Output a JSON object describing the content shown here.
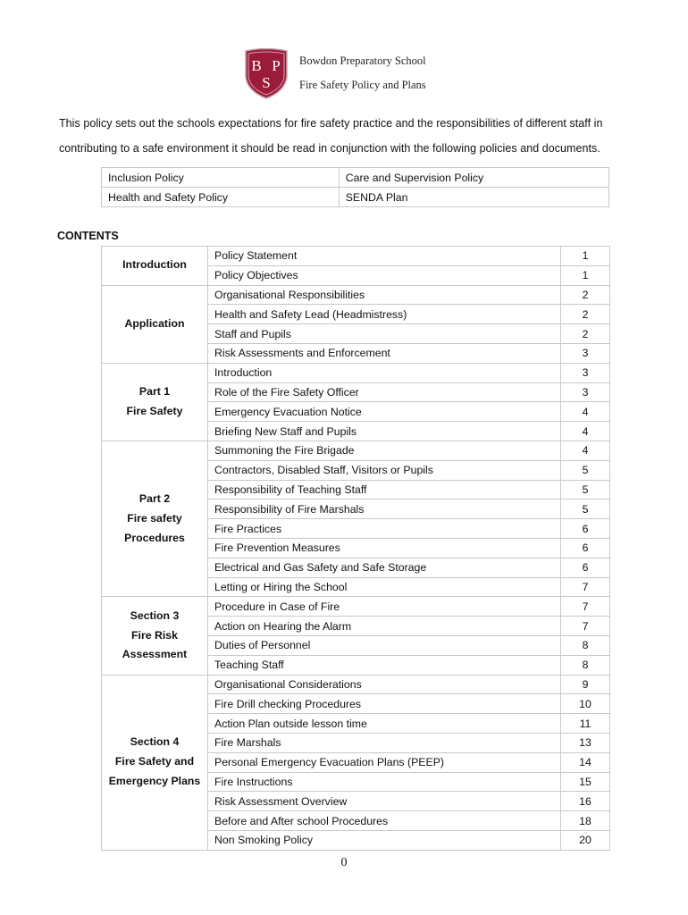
{
  "header": {
    "school": "Bowdon Preparatory School",
    "title": "Fire Safety Policy and Plans",
    "logo_text": "BPS",
    "logo_color": "#9b1c3a"
  },
  "intro": "This policy sets out the schools expectations for fire safety practice and the responsibilities of different staff in contributing to a safe environment it should be read in conjunction with the following policies and documents.",
  "related": [
    [
      "Inclusion Policy",
      "Care and Supervision Policy"
    ],
    [
      "Health and Safety Policy",
      "SENDA Plan"
    ]
  ],
  "contents_heading": "CONTENTS",
  "sections": [
    {
      "lines": [
        "Introduction"
      ],
      "items": [
        [
          "Policy Statement",
          "1"
        ],
        [
          "Policy Objectives",
          "1"
        ]
      ]
    },
    {
      "lines": [
        "Application"
      ],
      "items": [
        [
          "Organisational Responsibilities",
          "2"
        ],
        [
          "Health and Safety Lead (Headmistress)",
          "2"
        ],
        [
          "Staff and Pupils",
          "2"
        ],
        [
          "Risk Assessments and Enforcement",
          "3"
        ]
      ]
    },
    {
      "lines": [
        "Part 1",
        "Fire Safety"
      ],
      "items": [
        [
          "Introduction",
          "3"
        ],
        [
          "Role of the Fire Safety Officer",
          "3"
        ],
        [
          "Emergency Evacuation Notice",
          "4"
        ],
        [
          "Briefing New Staff and Pupils",
          "4"
        ]
      ]
    },
    {
      "lines": [
        "Part 2",
        "Fire safety",
        "Procedures"
      ],
      "items": [
        [
          "Summoning the Fire Brigade",
          "4"
        ],
        [
          "Contractors, Disabled Staff, Visitors or Pupils",
          "5"
        ],
        [
          "Responsibility of Teaching Staff",
          "5"
        ],
        [
          "Responsibility of Fire Marshals",
          "5"
        ],
        [
          "Fire Practices",
          "6"
        ],
        [
          "Fire Prevention Measures",
          "6"
        ],
        [
          "Electrical and Gas Safety and Safe Storage",
          "6"
        ],
        [
          "Letting or Hiring the School",
          "7"
        ]
      ]
    },
    {
      "lines": [
        "Section 3",
        "Fire Risk",
        "Assessment"
      ],
      "items": [
        [
          "Procedure in Case of Fire",
          "7"
        ],
        [
          "Action on Hearing the Alarm",
          "7"
        ],
        [
          "Duties of Personnel",
          "8"
        ],
        [
          "Teaching Staff",
          "8"
        ]
      ]
    },
    {
      "lines": [
        "Section 4",
        "Fire Safety and",
        "Emergency Plans"
      ],
      "items": [
        [
          "Organisational Considerations",
          "9"
        ],
        [
          "Fire Drill checking Procedures",
          "10"
        ],
        [
          "Action Plan outside lesson time",
          "11"
        ],
        [
          "Fire Marshals",
          "13"
        ],
        [
          "Personal Emergency Evacuation Plans (PEEP)",
          "14"
        ],
        [
          "Fire Instructions",
          "15"
        ],
        [
          "Risk Assessment Overview",
          "16"
        ],
        [
          "Before and After school Procedures",
          "18"
        ],
        [
          "Non Smoking Policy",
          "20"
        ]
      ]
    }
  ],
  "page_number": "0"
}
